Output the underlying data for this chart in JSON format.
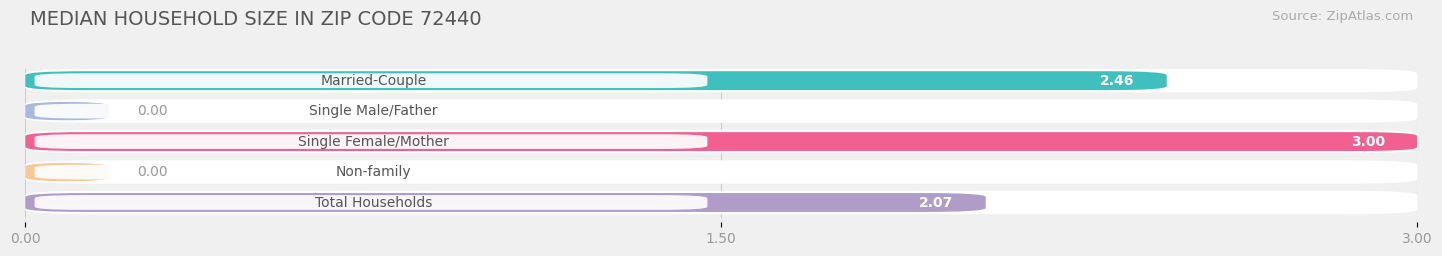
{
  "title": "MEDIAN HOUSEHOLD SIZE IN ZIP CODE 72440",
  "source": "Source: ZipAtlas.com",
  "categories": [
    "Married-Couple",
    "Single Male/Father",
    "Single Female/Mother",
    "Non-family",
    "Total Households"
  ],
  "values": [
    2.46,
    0.0,
    3.0,
    0.0,
    2.07
  ],
  "bar_colors": [
    "#40bfbf",
    "#aab8e0",
    "#f06090",
    "#f8c898",
    "#b09cc8"
  ],
  "background_color": "#f0f0f0",
  "bar_bg_color": "#e8e8e8",
  "row_bg_color": "#ffffff",
  "xlim": [
    0,
    3.0
  ],
  "xticks": [
    0.0,
    1.5,
    3.0
  ],
  "xtick_labels": [
    "0.00",
    "1.50",
    "3.00"
  ],
  "title_fontsize": 14,
  "source_fontsize": 9.5,
  "bar_label_fontsize": 10,
  "value_fontsize": 10,
  "tick_fontsize": 10,
  "zero_stub": 0.18
}
